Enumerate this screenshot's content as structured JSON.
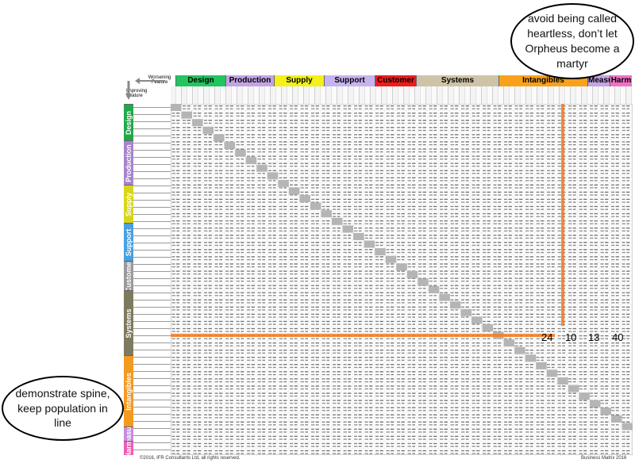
{
  "bubbles": {
    "top": "avoid being called heartless, don’t let Orpheus become a martyr",
    "left": "demonstrate spine, keep population in line"
  },
  "axis_labels": {
    "worsening": "Worsening Feature",
    "improving": "Improving Feature"
  },
  "top_categories": [
    {
      "label": "Design",
      "color": "#22c55e"
    },
    {
      "label": "Production",
      "color": "#c4a3e6"
    },
    {
      "label": "Supply",
      "color": "#f3f01c"
    },
    {
      "label": "Support",
      "color": "#c7b3ef"
    },
    {
      "label": "Customer",
      "color": "#ee1c1c"
    },
    {
      "label": "Systems",
      "color": "#cfc3a7"
    },
    {
      "label": "Intangibles",
      "color": "#f8a21c"
    },
    {
      "label": "Measure",
      "color": "#c4a3e6"
    },
    {
      "label": "Harm",
      "color": "#f071c6"
    }
  ],
  "side_categories": [
    {
      "label": "Design",
      "color": "#22a84a"
    },
    {
      "label": "Production",
      "color": "#a884cc"
    },
    {
      "label": "Supply",
      "color": "#d9d61a"
    },
    {
      "label": "Support",
      "color": "#4aa0e0"
    },
    {
      "label": "Customer",
      "color": "#9a9a9a"
    },
    {
      "label": "Systems",
      "color": "#7e7a5e"
    },
    {
      "label": "Intangibles",
      "color": "#f39a22"
    },
    {
      "label": "Measure",
      "color": "#c58ce0"
    },
    {
      "label": "Harm",
      "color": "#ec5eb3"
    }
  ],
  "highlight_values": [
    "24",
    "10",
    "13",
    "40"
  ],
  "highlight_color": "#f27a22",
  "footer": {
    "left": "©2016, IFR Consultants Ltd, all rights reserved.",
    "right": "Business Matrix 2016"
  }
}
